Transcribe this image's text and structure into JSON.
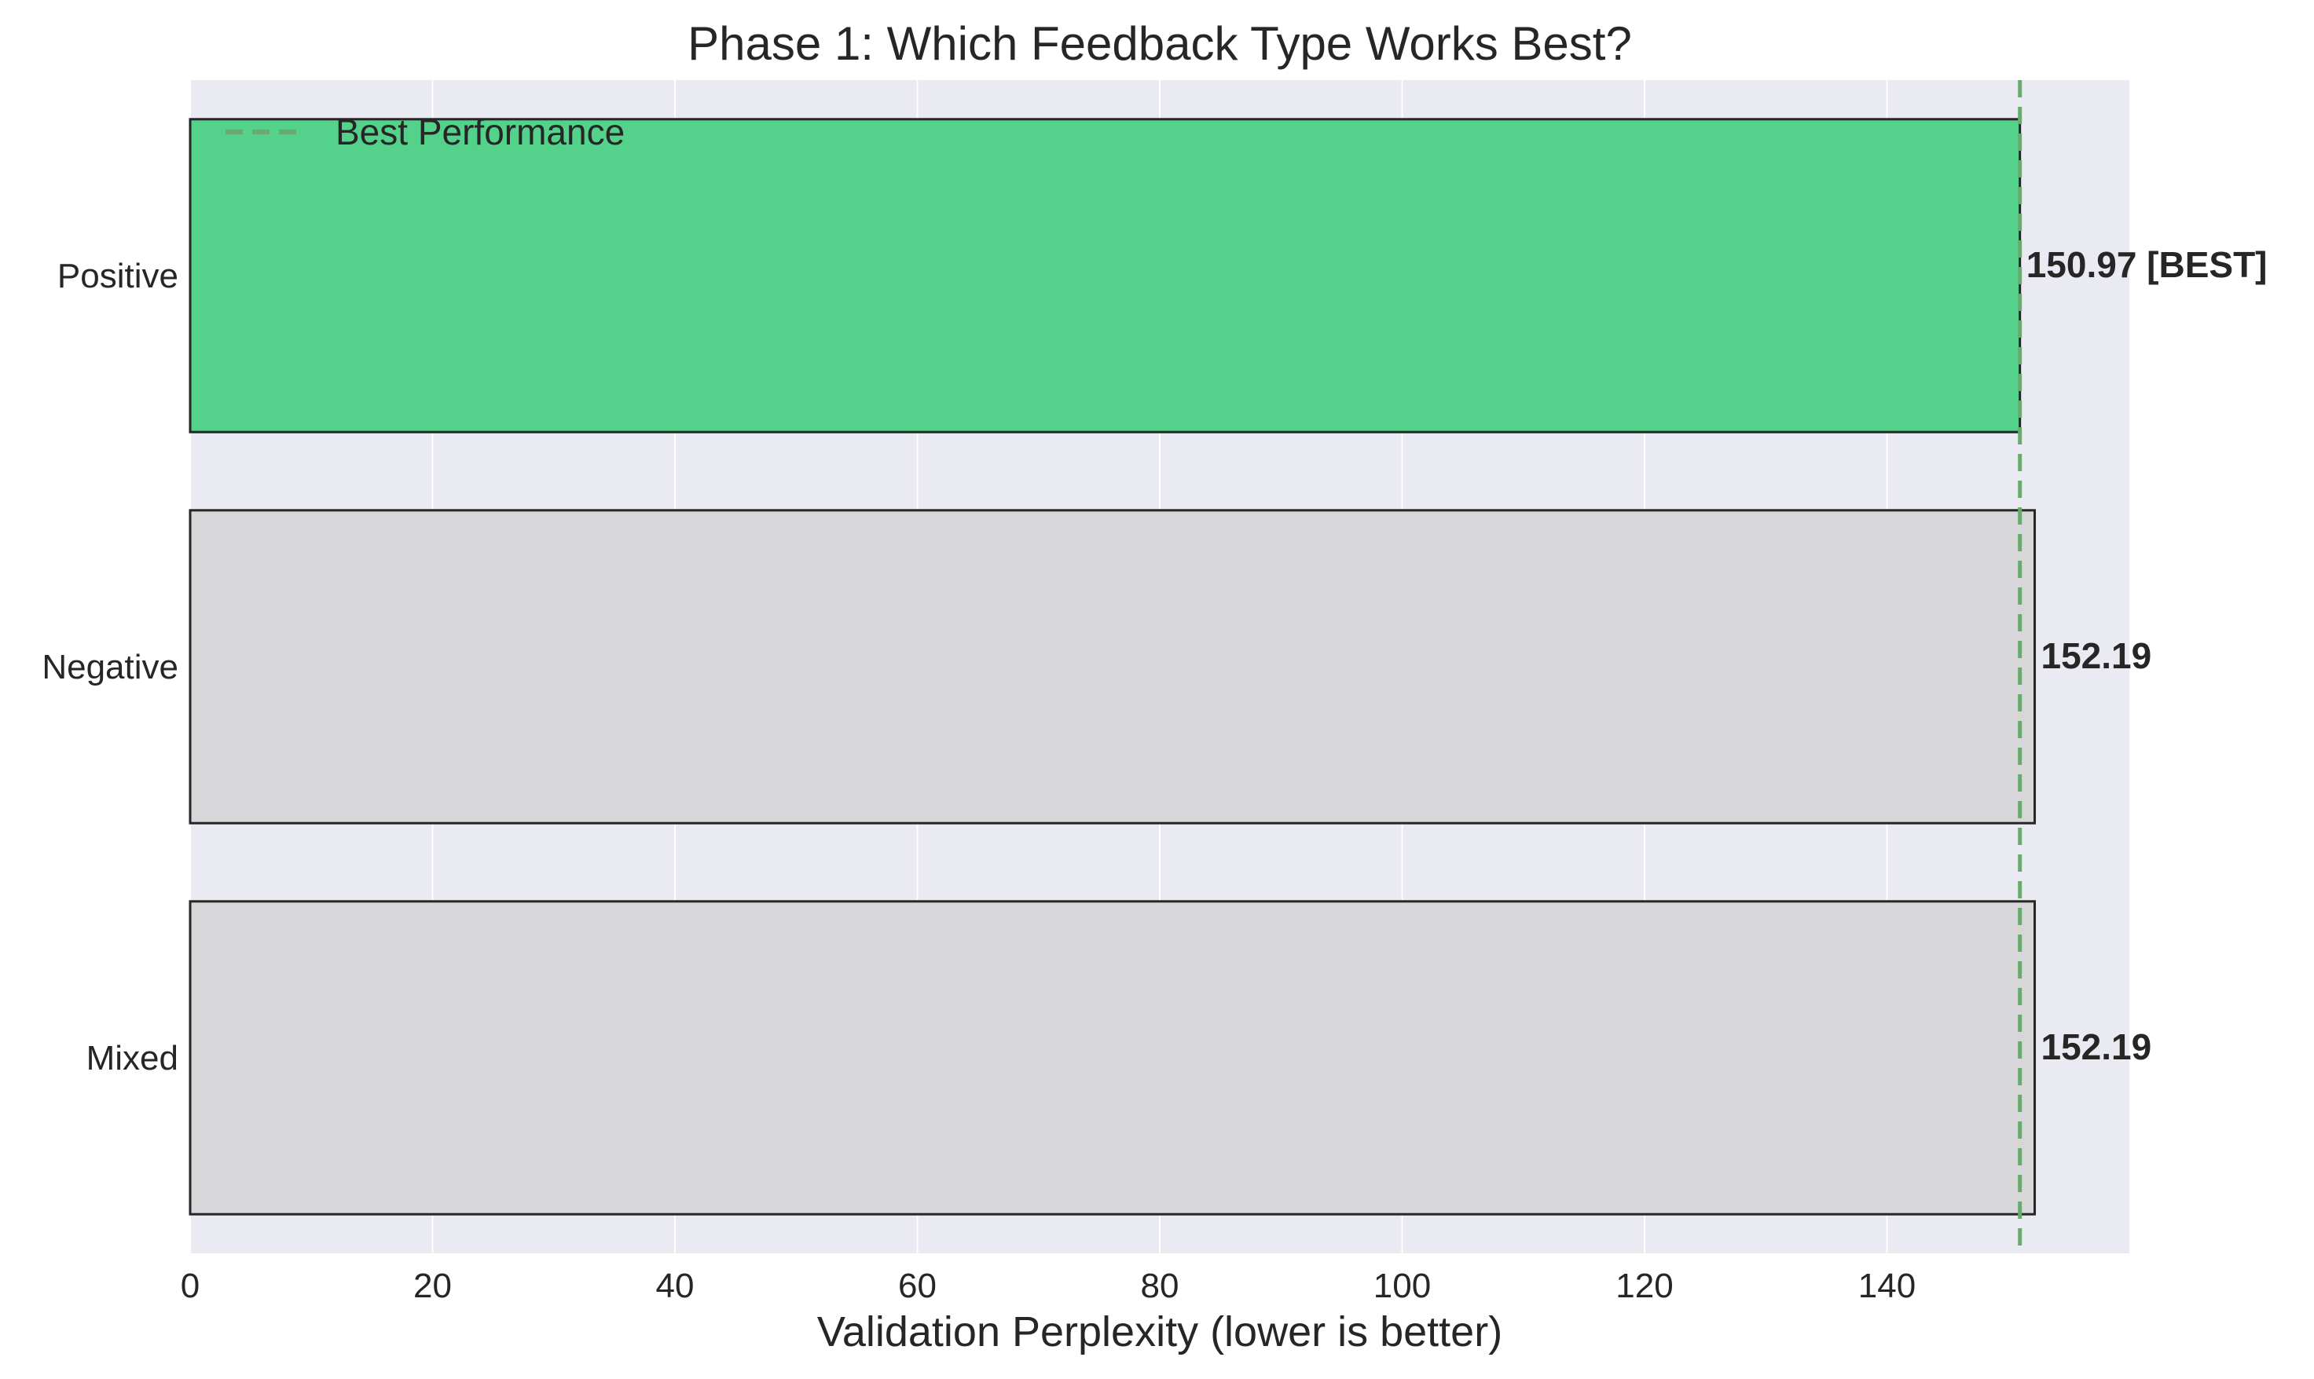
{
  "chart_data": {
    "type": "bar",
    "orientation": "horizontal",
    "title": "Phase 1: Which Feedback Type Works Best?",
    "xlabel": "Validation Perplexity (lower is better)",
    "ylabel": "",
    "xlim": [
      0,
      160
    ],
    "xticks": [
      0,
      20,
      40,
      60,
      80,
      100,
      120,
      140
    ],
    "grid": true,
    "categories": [
      "Positive",
      "Negative",
      "Mixed"
    ],
    "values": [
      150.97,
      152.19,
      152.19
    ],
    "value_labels": [
      "150.97 [BEST]",
      "152.19",
      "152.19"
    ],
    "bar_colors": [
      "#54d18b",
      "#d7d7da",
      "#d7d7da"
    ],
    "bar_edge_color": "#262626",
    "reference_line": {
      "value": 150.97,
      "color": "#6aaa6e",
      "style": "dashed",
      "label": "Best Performance"
    },
    "legend": {
      "position": "top-left",
      "entries": [
        "Best Performance"
      ]
    },
    "background_color": "#eaeaf2"
  }
}
